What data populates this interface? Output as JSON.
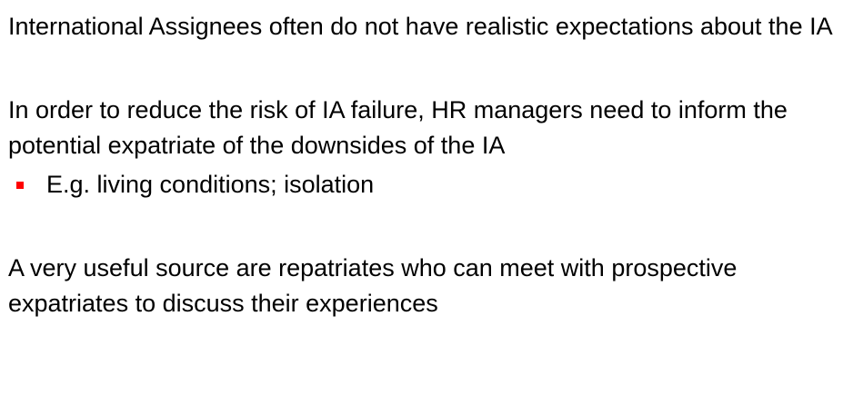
{
  "slide": {
    "paragraphs": [
      "International Assignees often do not have realistic expectations about the IA",
      "In order to reduce the risk of IA failure, HR managers need to inform the potential expatriate of the downsides of the IA",
      "A very useful source are repatriates who can meet with prospective expatriates to discuss their experiences"
    ],
    "bullets": [
      "E.g. living conditions; isolation"
    ]
  },
  "colors": {
    "text": "#000000",
    "bullet": "#ff0000",
    "background": "#ffffff"
  }
}
